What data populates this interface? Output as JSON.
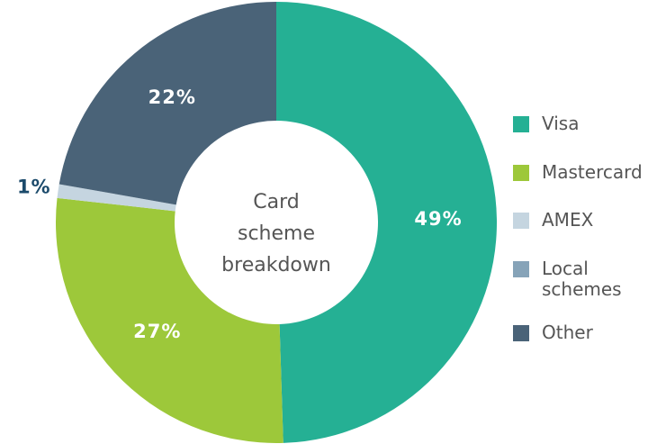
{
  "chart_data": {
    "type": "donut",
    "title": "Card scheme breakdown",
    "categories": [
      "Visa",
      "Mastercard",
      "AMEX",
      "Local schemes",
      "Other"
    ],
    "values": [
      49,
      27,
      1,
      0,
      22
    ],
    "value_labels": [
      "49%",
      "27%",
      "1%",
      null,
      "22%"
    ],
    "colors": [
      "#25b094",
      "#9dc83a",
      "#c5d5e0",
      "#86a3b8",
      "#4a6378"
    ],
    "legend": "right"
  }
}
